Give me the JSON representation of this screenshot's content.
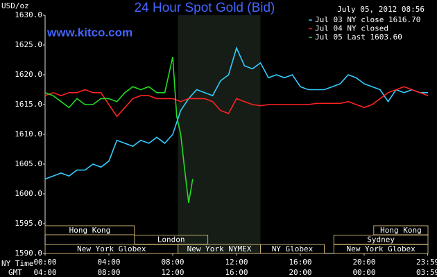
{
  "chart_data": {
    "type": "line",
    "title": "24 Hour Spot Gold (Bid)",
    "subtitle": "www.kitco.com",
    "timestamp": "July 05, 2012 08:56",
    "y_label": "USD/oz",
    "x_label": "NY Time",
    "x2_label": "GMT",
    "xlim": [
      0,
      24
    ],
    "ylim": [
      1590,
      1630
    ],
    "yticks": [
      {
        "value": 1590,
        "label": "1590.0"
      },
      {
        "value": 1595,
        "label": "1595.0"
      },
      {
        "value": 1600,
        "label": "1600.0"
      },
      {
        "value": 1605,
        "label": "1605.0"
      },
      {
        "value": 1610,
        "label": "1610.0"
      },
      {
        "value": 1615,
        "label": "1615.0"
      },
      {
        "value": 1620,
        "label": "1620.0"
      },
      {
        "value": 1625,
        "label": "1625.0"
      },
      {
        "value": 1630,
        "label": "1630.0"
      }
    ],
    "xticks": [
      {
        "value": 0,
        "label": "00:00"
      },
      {
        "value": 4,
        "label": "04:00"
      },
      {
        "value": 8,
        "label": "08:00"
      },
      {
        "value": 12,
        "label": "12:00"
      },
      {
        "value": 16,
        "label": "16:00"
      },
      {
        "value": 20,
        "label": "20:00"
      },
      {
        "value": 23.98,
        "label": "23:59"
      }
    ],
    "x2ticks": [
      {
        "value": 0,
        "label": "04:00"
      },
      {
        "value": 4,
        "label": "08:00"
      },
      {
        "value": 8,
        "label": "12:00"
      },
      {
        "value": 12,
        "label": "16:00"
      },
      {
        "value": 16,
        "label": "20:00"
      },
      {
        "value": 20,
        "label": "00:00"
      },
      {
        "value": 23.98,
        "label": "03:59"
      }
    ],
    "shaded_range": [
      8.33,
      13.5
    ],
    "legend": "upper right",
    "series": [
      {
        "name": "Jul 03 NY close 1616.70",
        "color": "#33ccff",
        "x": [
          0,
          0.5,
          1,
          1.5,
          2,
          2.5,
          3,
          3.5,
          4,
          4.5,
          5,
          5.5,
          6,
          6.5,
          7,
          7.5,
          8,
          8.5,
          9,
          9.5,
          10,
          10.5,
          11,
          11.5,
          12,
          12.5,
          13,
          13.5,
          14,
          14.5,
          15,
          15.5,
          16,
          16.5,
          17,
          17.5,
          18,
          18.5,
          19,
          19.5,
          20,
          20.5,
          21,
          21.5,
          22,
          22.5,
          23,
          23.5,
          24
        ],
        "values": [
          1602.5,
          1603,
          1603.5,
          1603,
          1604,
          1604,
          1605,
          1604.5,
          1605.5,
          1609,
          1608.5,
          1608,
          1609,
          1608.5,
          1609.5,
          1608.5,
          1610,
          1614,
          1616,
          1617.5,
          1617,
          1616.5,
          1619,
          1620,
          1624.5,
          1621.5,
          1621,
          1622,
          1619.5,
          1620,
          1619.5,
          1620,
          1618,
          1617.5,
          1617.5,
          1617.5,
          1618,
          1618.5,
          1620,
          1619.5,
          1618.5,
          1618,
          1617.5,
          1615.5,
          1617.5,
          1617,
          1617.5,
          1617,
          1617
        ]
      },
      {
        "name": "Jul 04 NY closed",
        "color": "#ff2222",
        "x": [
          0,
          0.5,
          1,
          1.5,
          2,
          2.5,
          3,
          3.5,
          4,
          4.5,
          5,
          5.5,
          6,
          6.5,
          7,
          7.5,
          8,
          8.5,
          9,
          9.5,
          10,
          10.5,
          11,
          11.5,
          12,
          12.5,
          13,
          13.5,
          14,
          14.5,
          15,
          15.5,
          16,
          16.5,
          17,
          17.5,
          18,
          18.5,
          19,
          19.5,
          20,
          20.5,
          21,
          21.5,
          22,
          22.5,
          23,
          23.5,
          24
        ],
        "values": [
          1616.5,
          1617,
          1616.5,
          1617,
          1617,
          1617.5,
          1617,
          1617,
          1615,
          1613,
          1614.5,
          1616,
          1616.5,
          1616.5,
          1616,
          1616,
          1616,
          1615.5,
          1616,
          1616,
          1616,
          1615.5,
          1614,
          1613.5,
          1616,
          1615.5,
          1615,
          1614.8,
          1615,
          1615,
          1615,
          1615,
          1615,
          1615,
          1615.2,
          1615.2,
          1615.2,
          1615.2,
          1615.5,
          1615,
          1614.5,
          1615,
          1616,
          1617,
          1617.5,
          1618,
          1617.5,
          1617,
          1616.5
        ]
      },
      {
        "name": "Jul 05 Last 1603.60",
        "color": "#22dd22",
        "x": [
          0,
          0.5,
          1,
          1.5,
          2,
          2.5,
          3,
          3.5,
          4,
          4.5,
          5,
          5.5,
          6,
          6.5,
          7,
          7.5,
          7.75,
          8,
          8.25,
          8.5,
          8.75,
          9,
          9.25
        ],
        "values": [
          1617,
          1616.5,
          1615.5,
          1614.5,
          1616,
          1615,
          1615,
          1616,
          1616,
          1615.5,
          1617,
          1618,
          1617.5,
          1618,
          1617,
          1617,
          1620,
          1623,
          1613,
          1610,
          1604,
          1598.5,
          1602.5
        ]
      }
    ],
    "sessions": [
      [
        {
          "name": "Hong Kong",
          "start": 0,
          "end": 5.6
        },
        {
          "name": "Hong Kong",
          "start": 20.6,
          "end": 24
        }
      ],
      [
        {
          "name": "London",
          "start": 5.6,
          "end": 10.2
        },
        {
          "name": "Sydney",
          "start": 18.1,
          "end": 24
        }
      ],
      [
        {
          "name": "New York Globex",
          "start": 0,
          "end": 8.33
        },
        {
          "name": "New York NYMEX",
          "start": 8.33,
          "end": 13.5
        },
        {
          "name": "NY Globex",
          "start": 13.5,
          "end": 17.5
        },
        {
          "name": "New York Globex",
          "start": 18.1,
          "end": 24
        }
      ]
    ]
  }
}
